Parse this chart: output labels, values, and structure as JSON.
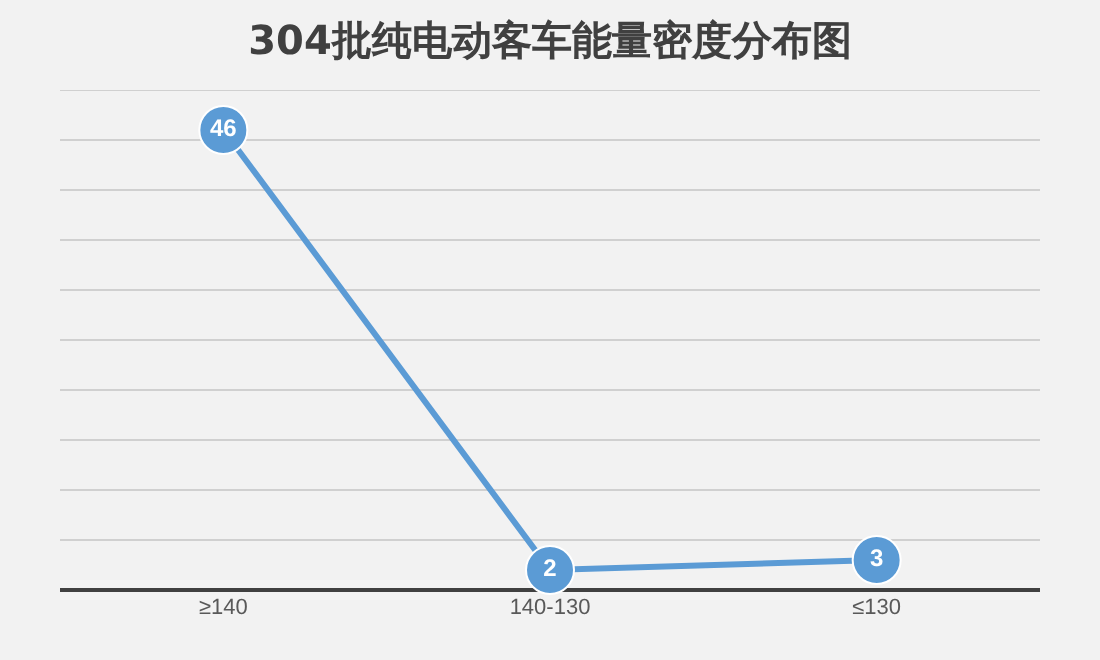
{
  "chart_data": {
    "type": "line",
    "title": "304批纯电动客车能量密度分布图",
    "categories": [
      "≥140",
      "140-130",
      "≤130"
    ],
    "series": [
      {
        "color": "#5b9bd5",
        "values": [
          46,
          2,
          3
        ]
      }
    ],
    "ylim": [
      0,
      50
    ],
    "yticks": [
      {
        "value": 0,
        "label": null
      },
      {
        "value": 5,
        "label": null
      },
      {
        "value": 10,
        "label": null
      },
      {
        "value": 15,
        "label": null
      },
      {
        "value": 20,
        "label": null
      },
      {
        "value": 25,
        "label": null
      },
      {
        "value": 30,
        "label": null
      },
      {
        "value": 35,
        "label": null
      },
      {
        "value": 40,
        "label": null
      },
      {
        "value": 45,
        "label": null
      },
      {
        "value": 50,
        "label": null
      }
    ],
    "tick_labels": "x",
    "grid": "y",
    "marker": "circle",
    "data_labels": true
  }
}
